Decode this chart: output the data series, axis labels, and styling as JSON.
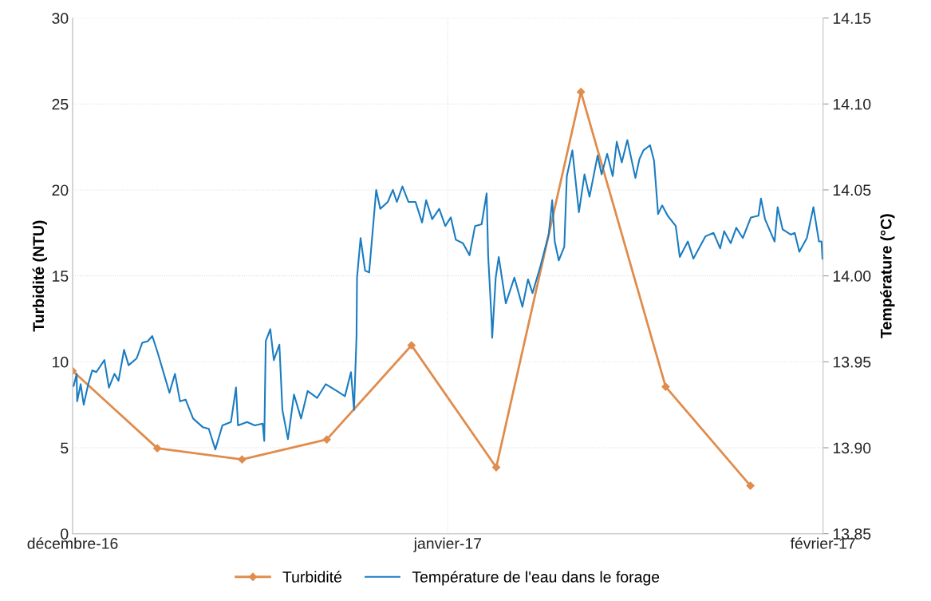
{
  "chart_data": {
    "type": "line",
    "xlim": [
      "2016-12-01",
      "2017-02-01"
    ],
    "xticks": [
      {
        "value": "2016-12-01",
        "label": "décembre-16"
      },
      {
        "value": "2017-01-01",
        "label": "janvier-17"
      },
      {
        "value": "2017-02-01",
        "label": "février-17"
      }
    ],
    "ylabel": "Turbidité (NTU)",
    "y2label": "Température (°C)",
    "ylim": [
      0,
      30
    ],
    "yticks": [
      0,
      5,
      10,
      15,
      20,
      25,
      30
    ],
    "y2lim": [
      13.85,
      14.15
    ],
    "y2ticks": [
      {
        "value": 13.85,
        "label": "13.85"
      },
      {
        "value": 13.9,
        "label": "13.90"
      },
      {
        "value": 13.95,
        "label": "13.95"
      },
      {
        "value": 14.0,
        "label": "14.00"
      },
      {
        "value": 14.05,
        "label": "14.05"
      },
      {
        "value": 14.1,
        "label": "14.10"
      },
      {
        "value": 14.15,
        "label": "14.15"
      }
    ],
    "grid": true,
    "legend": "bottom",
    "series": [
      {
        "name": "Turbidité",
        "color": "#e08c4c",
        "marker": "diamond",
        "x": [
          "2016-12-01",
          "2016-12-08",
          "2016-12-15",
          "2016-12-22",
          "2016-12-29",
          "2017-01-05",
          "2017-01-12",
          "2017-01-19",
          "2017-01-26"
        ],
        "values": [
          9.47,
          4.97,
          4.32,
          5.48,
          10.96,
          3.86,
          25.7,
          8.55,
          2.79
        ]
      },
      {
        "name": "Température de l'eau dans le forage",
        "color": "#1a7cc1",
        "marker": "none",
        "axis": "y2",
        "x": [
          "2016-12-01T02:00",
          "2016-12-01T08:00",
          "2016-12-01T09:00",
          "2016-12-01T16:00",
          "2016-12-01T22:00",
          "2016-12-02T07:00",
          "2016-12-02T15:00",
          "2016-12-02T23:00",
          "2016-12-03T15:00",
          "2016-12-04T00:00",
          "2016-12-04T11:00",
          "2016-12-04T19:00",
          "2016-12-05T06:00",
          "2016-12-05T15:00",
          "2016-12-06T07:00",
          "2016-12-06T18:00",
          "2016-12-07T05:00",
          "2016-12-07T14:00",
          "2016-12-08T01:00",
          "2016-12-08T13:00",
          "2016-12-09T00:00",
          "2016-12-09T11:00",
          "2016-12-09T21:00",
          "2016-12-10T08:00",
          "2016-12-10T23:00",
          "2016-12-11T18:00",
          "2016-12-12T06:00",
          "2016-12-12T19:00",
          "2016-12-13T09:00",
          "2016-12-14T02:00",
          "2016-12-14T12:00",
          "2016-12-14T16:00",
          "2016-12-15T10:00",
          "2016-12-16T01:00",
          "2016-12-16T17:00",
          "2016-12-16T20:00",
          "2016-12-16T23:00",
          "2016-12-17T08:00",
          "2016-12-17T15:00",
          "2016-12-18T02:00",
          "2016-12-18T08:00",
          "2016-12-18T19:00",
          "2016-12-19T07:00",
          "2016-12-19T21:00",
          "2016-12-20T10:00",
          "2016-12-21T05:00",
          "2016-12-21T22:00",
          "2016-12-22T20:00",
          "2016-12-23T12:00",
          "2016-12-24T00:00",
          "2016-12-24T06:00",
          "2016-12-24T11:00",
          "2016-12-24T12:00",
          "2016-12-24T19:00",
          "2016-12-25T04:00",
          "2016-12-25T12:00",
          "2016-12-26T02:00",
          "2016-12-26T10:00",
          "2016-12-27T01:00",
          "2016-12-27T11:00",
          "2016-12-27T19:00",
          "2016-12-28T06:00",
          "2016-12-28T18:00",
          "2016-12-29T08:00",
          "2016-12-29T21:00",
          "2016-12-30T05:00",
          "2016-12-30T17:00",
          "2016-12-31T07:00",
          "2016-12-31T19:00",
          "2017-01-01T06:00",
          "2017-01-01T16:00",
          "2017-01-02T06:00",
          "2017-01-02T19:00",
          "2017-01-03T06:00",
          "2017-01-03T19:00",
          "2017-01-04T05:00",
          "2017-01-04T08:00",
          "2017-01-04T15:00",
          "2017-01-04T16:00",
          "2017-01-04T23:00",
          "2017-01-05T05:00",
          "2017-01-05T19:00",
          "2017-01-06T12:00",
          "2017-01-07T04:00",
          "2017-01-07T15:00",
          "2017-01-08T00:00",
          "2017-01-08T16:00",
          "2017-01-09T08:00",
          "2017-01-09T15:00",
          "2017-01-09T20:00",
          "2017-01-10T04:00",
          "2017-01-10T15:00",
          "2017-01-10T20:00",
          "2017-01-11T07:00",
          "2017-01-11T20:00",
          "2017-01-12T07:00",
          "2017-01-12T17:00",
          "2017-01-13T09:00",
          "2017-01-13T17:00",
          "2017-01-14T04:00",
          "2017-01-14T15:00",
          "2017-01-14T23:00",
          "2017-01-15T09:00",
          "2017-01-15T20:00",
          "2017-01-16T12:00",
          "2017-01-16T20:00",
          "2017-01-17T04:00",
          "2017-01-17T17:00",
          "2017-01-18T01:00",
          "2017-01-18T09:00",
          "2017-01-18T17:00",
          "2017-01-19T04:00",
          "2017-01-19T20:00",
          "2017-01-20T04:00",
          "2017-01-20T20:00",
          "2017-01-21T07:00",
          "2017-01-22T07:00",
          "2017-01-22T23:00",
          "2017-01-23T12:00",
          "2017-01-23T20:00",
          "2017-01-24T09:00",
          "2017-01-24T20:00",
          "2017-01-25T09:00",
          "2017-01-26T01:00",
          "2017-01-26T16:00",
          "2017-01-26T21:00",
          "2017-01-27T05:00",
          "2017-01-28T00:00",
          "2017-01-28T06:00",
          "2017-01-28T16:00",
          "2017-01-29T08:00",
          "2017-01-29T16:00",
          "2017-01-30T01:00",
          "2017-01-30T16:00",
          "2017-01-31T05:00",
          "2017-01-31T16:00",
          "2017-01-31T21:00",
          "2017-01-31T23:00"
        ],
        "values": [
          13.936,
          13.943,
          13.927,
          13.937,
          13.925,
          13.937,
          13.945,
          13.944,
          13.951,
          13.935,
          13.943,
          13.939,
          13.957,
          13.948,
          13.952,
          13.961,
          13.962,
          13.965,
          13.955,
          13.943,
          13.932,
          13.943,
          13.927,
          13.928,
          13.917,
          13.912,
          13.911,
          13.899,
          13.913,
          13.915,
          13.935,
          13.913,
          13.915,
          13.913,
          13.914,
          13.904,
          13.962,
          13.969,
          13.951,
          13.96,
          13.922,
          13.905,
          13.931,
          13.917,
          13.933,
          13.929,
          13.937,
          13.933,
          13.93,
          13.944,
          13.922,
          13.965,
          13.999,
          14.022,
          14.003,
          14.002,
          14.05,
          14.039,
          14.043,
          14.05,
          14.043,
          14.052,
          14.043,
          14.043,
          14.031,
          14.044,
          14.033,
          14.039,
          14.029,
          14.034,
          14.021,
          14.019,
          14.012,
          14.029,
          14.03,
          14.048,
          14.012,
          13.973,
          13.964,
          13.999,
          14.011,
          13.984,
          13.999,
          13.982,
          13.998,
          13.99,
          14.006,
          14.024,
          14.044,
          14.02,
          14.009,
          14.017,
          14.058,
          14.073,
          14.037,
          14.059,
          14.046,
          14.07,
          14.059,
          14.071,
          14.058,
          14.078,
          14.066,
          14.079,
          14.057,
          14.068,
          14.073,
          14.076,
          14.067,
          14.036,
          14.041,
          14.035,
          14.029,
          14.011,
          14.02,
          14.01,
          14.023,
          14.025,
          14.016,
          14.026,
          14.019,
          14.028,
          14.022,
          14.034,
          14.035,
          14.045,
          14.033,
          14.02,
          14.04,
          14.027,
          14.024,
          14.025,
          14.014,
          14.022,
          14.04,
          14.02,
          14.02,
          14.01
        ]
      }
    ]
  }
}
